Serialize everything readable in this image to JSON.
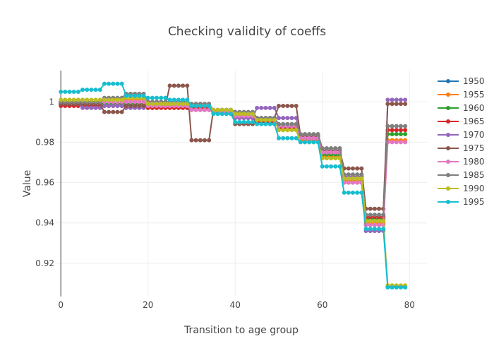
{
  "chart_data": {
    "type": "line",
    "title": "Checking validity of coeffs",
    "xlabel": "Transition to age group",
    "ylabel": "Value",
    "xlim": [
      -1,
      84
    ],
    "ylim": [
      0.9035,
      1.0155
    ],
    "xticks": [
      0,
      20,
      40,
      60,
      80
    ],
    "yticks": [
      0.92,
      0.94,
      0.96,
      0.98,
      1
    ],
    "ytick_labels": [
      "0.92",
      "0.94",
      "0.96",
      "0.98",
      "1"
    ],
    "grid": true,
    "legend_position": "right",
    "x": [
      0,
      1,
      2,
      3,
      4,
      5,
      6,
      7,
      8,
      9,
      10,
      11,
      12,
      13,
      14,
      15,
      16,
      17,
      18,
      19,
      20,
      21,
      22,
      23,
      24,
      25,
      26,
      27,
      28,
      29,
      30,
      31,
      32,
      33,
      34,
      35,
      36,
      37,
      38,
      39,
      40,
      41,
      42,
      43,
      44,
      45,
      46,
      47,
      48,
      49,
      50,
      51,
      52,
      53,
      54,
      55,
      56,
      57,
      58,
      59,
      60,
      61,
      62,
      63,
      64,
      65,
      66,
      67,
      68,
      69,
      70,
      71,
      72,
      73,
      74,
      75,
      76,
      77,
      78,
      79
    ],
    "series": [
      {
        "name": "1950",
        "color": "#1f77b4",
        "values": [
          1.0,
          1.0,
          1.0,
          1.0,
          1.0,
          0.999,
          0.999,
          0.999,
          0.999,
          0.999,
          0.999,
          0.999,
          0.999,
          0.999,
          0.999,
          0.999,
          0.999,
          0.999,
          0.999,
          0.999,
          0.998,
          0.998,
          0.998,
          0.998,
          0.998,
          0.998,
          0.998,
          0.998,
          0.998,
          0.998,
          0.997,
          0.997,
          0.997,
          0.997,
          0.997,
          0.995,
          0.995,
          0.995,
          0.995,
          0.995,
          0.992,
          0.992,
          0.992,
          0.992,
          0.992,
          0.99,
          0.99,
          0.99,
          0.99,
          0.99,
          0.987,
          0.987,
          0.987,
          0.987,
          0.987,
          0.981,
          0.981,
          0.981,
          0.981,
          0.981,
          0.973,
          0.973,
          0.973,
          0.973,
          0.973,
          0.96,
          0.96,
          0.96,
          0.96,
          0.96,
          0.939,
          0.939,
          0.939,
          0.939,
          0.939,
          0.9085,
          0.9085,
          0.9085,
          0.9085,
          0.9085
        ]
      },
      {
        "name": "1955",
        "color": "#ff7f0e",
        "values": [
          1.0,
          1.0,
          1.0,
          1.0,
          1.0,
          1.0,
          1.0,
          1.0,
          1.0,
          1.0,
          1.001,
          1.001,
          1.001,
          1.001,
          1.001,
          1.001,
          1.001,
          1.001,
          1.001,
          1.001,
          0.999,
          0.999,
          0.999,
          0.999,
          0.999,
          0.999,
          0.999,
          0.999,
          0.999,
          0.999,
          0.997,
          0.997,
          0.997,
          0.997,
          0.997,
          0.995,
          0.995,
          0.995,
          0.995,
          0.995,
          0.993,
          0.993,
          0.993,
          0.993,
          0.993,
          0.991,
          0.991,
          0.991,
          0.991,
          0.991,
          0.987,
          0.987,
          0.987,
          0.987,
          0.987,
          0.981,
          0.981,
          0.981,
          0.981,
          0.981,
          0.973,
          0.973,
          0.973,
          0.973,
          0.973,
          0.961,
          0.961,
          0.961,
          0.961,
          0.961,
          0.94,
          0.94,
          0.94,
          0.94,
          0.94,
          0.981,
          0.981,
          0.981,
          0.981,
          0.981
        ]
      },
      {
        "name": "1960",
        "color": "#2ca02c",
        "values": [
          0.999,
          0.999,
          0.999,
          0.999,
          0.999,
          0.999,
          0.999,
          0.999,
          0.999,
          0.999,
          0.999,
          0.999,
          0.999,
          0.999,
          0.999,
          0.999,
          0.999,
          0.999,
          0.999,
          0.999,
          0.998,
          0.998,
          0.998,
          0.998,
          0.998,
          0.998,
          0.998,
          0.998,
          0.998,
          0.998,
          0.998,
          0.998,
          0.998,
          0.998,
          0.998,
          0.996,
          0.996,
          0.996,
          0.996,
          0.996,
          0.994,
          0.994,
          0.994,
          0.994,
          0.994,
          0.991,
          0.991,
          0.991,
          0.991,
          0.991,
          0.988,
          0.988,
          0.988,
          0.988,
          0.988,
          0.982,
          0.982,
          0.982,
          0.982,
          0.982,
          0.974,
          0.974,
          0.974,
          0.974,
          0.974,
          0.962,
          0.962,
          0.962,
          0.962,
          0.962,
          0.942,
          0.942,
          0.942,
          0.942,
          0.942,
          0.984,
          0.984,
          0.984,
          0.984,
          0.984
        ]
      },
      {
        "name": "1965",
        "color": "#d62728",
        "values": [
          0.998,
          0.998,
          0.998,
          0.998,
          0.998,
          0.998,
          0.998,
          0.998,
          0.998,
          0.998,
          0.998,
          0.998,
          0.998,
          0.998,
          0.998,
          0.998,
          0.998,
          0.998,
          0.998,
          0.998,
          0.997,
          0.997,
          0.997,
          0.997,
          0.997,
          0.997,
          0.997,
          0.997,
          0.997,
          0.997,
          0.997,
          0.997,
          0.997,
          0.997,
          0.997,
          0.995,
          0.995,
          0.995,
          0.995,
          0.995,
          0.993,
          0.993,
          0.993,
          0.993,
          0.993,
          0.99,
          0.99,
          0.99,
          0.99,
          0.99,
          0.987,
          0.987,
          0.987,
          0.987,
          0.987,
          0.982,
          0.982,
          0.982,
          0.982,
          0.982,
          0.975,
          0.975,
          0.975,
          0.975,
          0.975,
          0.963,
          0.963,
          0.963,
          0.963,
          0.963,
          0.943,
          0.943,
          0.943,
          0.943,
          0.943,
          0.986,
          0.986,
          0.986,
          0.986,
          0.986
        ]
      },
      {
        "name": "1970",
        "color": "#9467bd",
        "values": [
          0.999,
          0.999,
          0.999,
          0.999,
          0.999,
          0.997,
          0.997,
          0.997,
          0.997,
          0.997,
          0.998,
          0.998,
          0.998,
          0.998,
          0.998,
          0.997,
          0.997,
          0.997,
          0.997,
          0.997,
          0.998,
          0.998,
          0.998,
          0.998,
          0.998,
          0.998,
          0.998,
          0.998,
          0.998,
          0.998,
          0.996,
          0.996,
          0.996,
          0.996,
          0.996,
          0.995,
          0.995,
          0.995,
          0.995,
          0.995,
          0.992,
          0.992,
          0.992,
          0.992,
          0.992,
          0.997,
          0.997,
          0.997,
          0.997,
          0.997,
          0.992,
          0.992,
          0.992,
          0.992,
          0.992,
          0.983,
          0.983,
          0.983,
          0.983,
          0.983,
          0.975,
          0.975,
          0.975,
          0.975,
          0.975,
          0.963,
          0.963,
          0.963,
          0.963,
          0.963,
          0.936,
          0.936,
          0.936,
          0.936,
          0.936,
          1.001,
          1.001,
          1.001,
          1.001,
          1.001
        ]
      },
      {
        "name": "1975",
        "color": "#8c564b",
        "values": [
          0.999,
          0.999,
          0.999,
          0.999,
          0.999,
          0.999,
          0.999,
          0.999,
          0.999,
          0.999,
          0.995,
          0.995,
          0.995,
          0.995,
          0.995,
          0.998,
          0.998,
          0.998,
          0.998,
          0.998,
          0.998,
          0.998,
          0.998,
          0.998,
          0.998,
          1.008,
          1.008,
          1.008,
          1.008,
          1.008,
          0.981,
          0.981,
          0.981,
          0.981,
          0.981,
          0.996,
          0.996,
          0.996,
          0.996,
          0.996,
          0.989,
          0.989,
          0.989,
          0.989,
          0.989,
          0.992,
          0.992,
          0.992,
          0.992,
          0.992,
          0.998,
          0.998,
          0.998,
          0.998,
          0.998,
          0.983,
          0.983,
          0.983,
          0.983,
          0.983,
          0.976,
          0.976,
          0.976,
          0.976,
          0.976,
          0.967,
          0.967,
          0.967,
          0.967,
          0.967,
          0.947,
          0.947,
          0.947,
          0.947,
          0.947,
          0.999,
          0.999,
          0.999,
          0.999,
          0.999
        ]
      },
      {
        "name": "1980",
        "color": "#e377c2",
        "values": [
          1.0,
          1.0,
          1.0,
          1.0,
          1.0,
          1.0,
          1.0,
          1.0,
          1.0,
          1.0,
          1.0,
          1.0,
          1.0,
          1.0,
          1.0,
          1.0,
          1.0,
          1.0,
          1.0,
          1.0,
          0.998,
          0.998,
          0.998,
          0.998,
          0.998,
          0.998,
          0.998,
          0.998,
          0.998,
          0.998,
          0.996,
          0.996,
          0.996,
          0.996,
          0.996,
          0.995,
          0.995,
          0.995,
          0.995,
          0.995,
          0.993,
          0.993,
          0.993,
          0.993,
          0.993,
          0.991,
          0.991,
          0.991,
          0.991,
          0.991,
          0.988,
          0.988,
          0.988,
          0.988,
          0.988,
          0.982,
          0.982,
          0.982,
          0.982,
          0.982,
          0.975,
          0.975,
          0.975,
          0.975,
          0.975,
          0.96,
          0.96,
          0.96,
          0.96,
          0.96,
          0.939,
          0.939,
          0.939,
          0.939,
          0.939,
          0.98,
          0.98,
          0.98,
          0.98,
          0.98
        ]
      },
      {
        "name": "1985",
        "color": "#7f7f7f",
        "values": [
          1.0,
          1.0,
          1.0,
          1.0,
          1.0,
          1.0,
          1.0,
          1.0,
          1.0,
          1.0,
          1.002,
          1.002,
          1.002,
          1.002,
          1.002,
          1.004,
          1.004,
          1.004,
          1.004,
          1.004,
          1.0,
          1.0,
          1.0,
          1.0,
          1.0,
          1.0,
          1.0,
          1.0,
          1.0,
          1.0,
          0.999,
          0.999,
          0.999,
          0.999,
          0.999,
          0.996,
          0.996,
          0.996,
          0.996,
          0.996,
          0.995,
          0.995,
          0.995,
          0.995,
          0.995,
          0.992,
          0.992,
          0.992,
          0.992,
          0.992,
          0.989,
          0.989,
          0.989,
          0.989,
          0.989,
          0.984,
          0.984,
          0.984,
          0.984,
          0.984,
          0.977,
          0.977,
          0.977,
          0.977,
          0.977,
          0.964,
          0.964,
          0.964,
          0.964,
          0.964,
          0.944,
          0.944,
          0.944,
          0.944,
          0.944,
          0.988,
          0.988,
          0.988,
          0.988,
          0.988
        ]
      },
      {
        "name": "1990",
        "color": "#bcbd22",
        "values": [
          1.001,
          1.001,
          1.001,
          1.001,
          1.001,
          1.001,
          1.001,
          1.001,
          1.001,
          1.001,
          1.001,
          1.001,
          1.001,
          1.001,
          1.001,
          1.002,
          1.002,
          1.002,
          1.002,
          1.002,
          0.999,
          0.999,
          0.999,
          0.999,
          0.999,
          0.999,
          0.999,
          0.999,
          0.999,
          0.999,
          0.998,
          0.998,
          0.998,
          0.998,
          0.998,
          0.996,
          0.996,
          0.996,
          0.996,
          0.996,
          0.994,
          0.994,
          0.994,
          0.994,
          0.994,
          0.991,
          0.991,
          0.991,
          0.991,
          0.991,
          0.986,
          0.986,
          0.986,
          0.986,
          0.986,
          0.98,
          0.98,
          0.98,
          0.98,
          0.98,
          0.972,
          0.972,
          0.972,
          0.972,
          0.972,
          0.962,
          0.962,
          0.962,
          0.962,
          0.962,
          0.941,
          0.941,
          0.941,
          0.941,
          0.941,
          0.909,
          0.909,
          0.909,
          0.909,
          0.909
        ]
      },
      {
        "name": "1995",
        "color": "#17becf",
        "values": [
          1.005,
          1.005,
          1.005,
          1.005,
          1.005,
          1.006,
          1.006,
          1.006,
          1.006,
          1.006,
          1.009,
          1.009,
          1.009,
          1.009,
          1.009,
          1.003,
          1.003,
          1.003,
          1.003,
          1.003,
          1.002,
          1.002,
          1.002,
          1.002,
          1.002,
          1.001,
          1.001,
          1.001,
          1.001,
          1.001,
          0.998,
          0.998,
          0.998,
          0.998,
          0.998,
          0.994,
          0.994,
          0.994,
          0.994,
          0.994,
          0.99,
          0.99,
          0.99,
          0.99,
          0.99,
          0.989,
          0.989,
          0.989,
          0.989,
          0.989,
          0.982,
          0.982,
          0.982,
          0.982,
          0.982,
          0.98,
          0.98,
          0.98,
          0.98,
          0.98,
          0.968,
          0.968,
          0.968,
          0.968,
          0.968,
          0.955,
          0.955,
          0.955,
          0.955,
          0.955,
          0.937,
          0.937,
          0.937,
          0.937,
          0.937,
          0.908,
          0.908,
          0.908,
          0.908,
          0.908
        ]
      }
    ]
  }
}
